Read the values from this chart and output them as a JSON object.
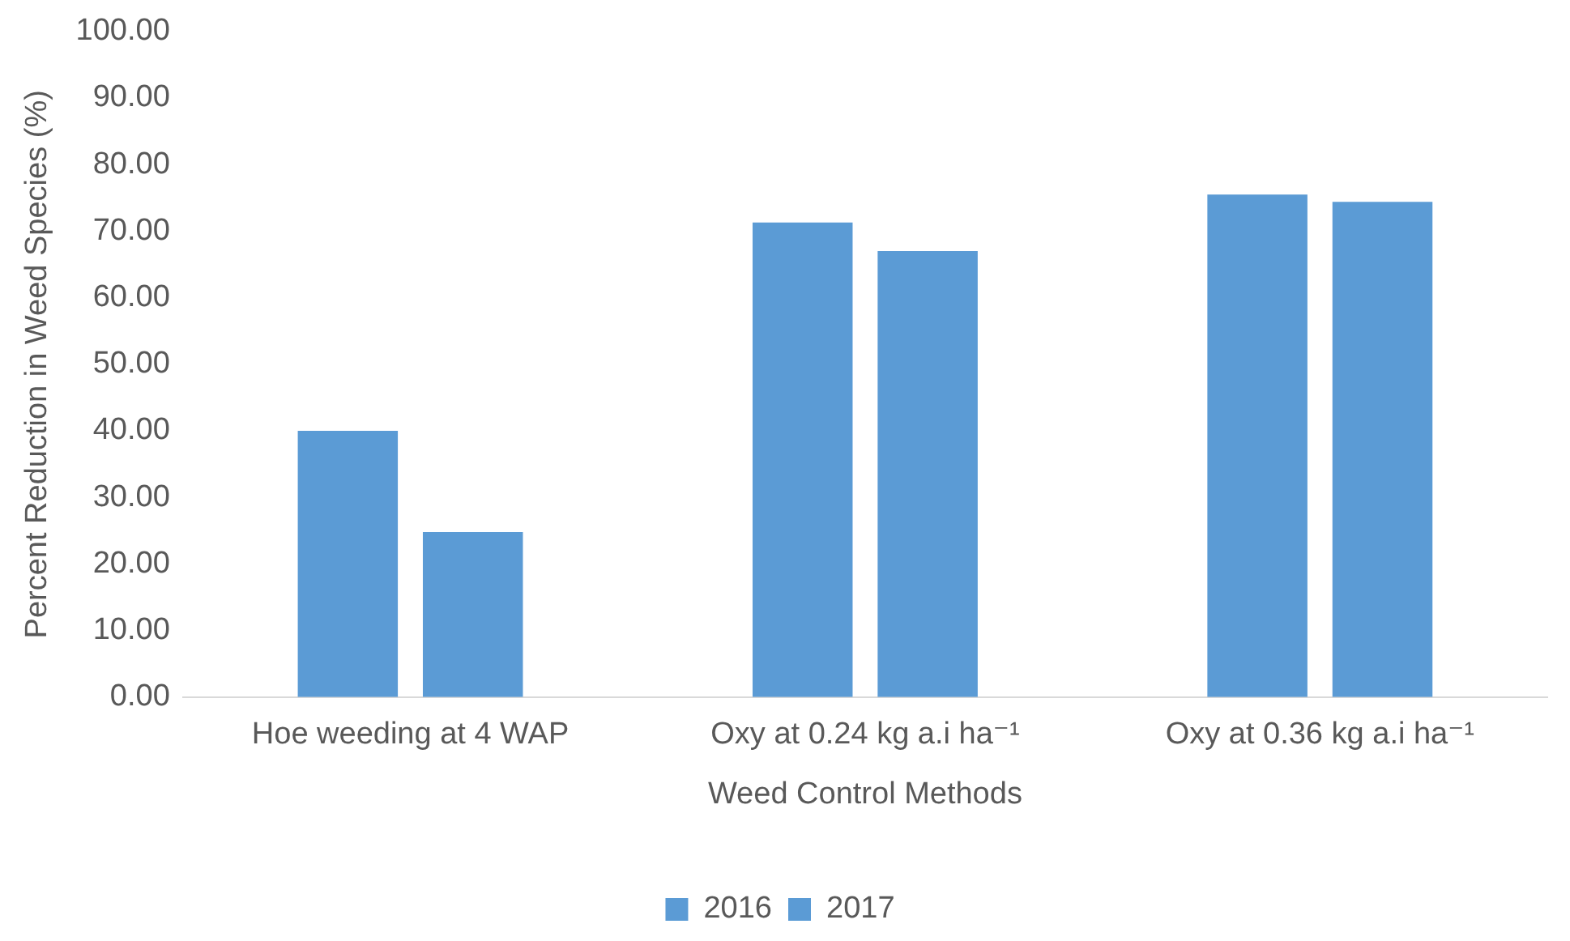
{
  "chart_data": {
    "type": "bar",
    "xlabel": "Weed Control Methods",
    "ylabel": "Percent Reduction in Weed Species (%)",
    "categories": [
      "Hoe weeding at 4 WAP",
      "Oxy at 0.24 kg a.i ha⁻¹",
      "Oxy at 0.36 kg a.i ha⁻¹"
    ],
    "series": [
      {
        "name": "2016",
        "color": "#5b9bd5",
        "values": [
          40.0,
          71.3,
          75.5
        ]
      },
      {
        "name": "2017",
        "color": "#5b9bd5",
        "values": [
          24.8,
          67.0,
          74.4
        ]
      }
    ],
    "ylim": [
      0,
      100
    ],
    "yticks": [
      {
        "value": 0,
        "label": "0.00"
      },
      {
        "value": 10,
        "label": "10.00"
      },
      {
        "value": 20,
        "label": "20.00"
      },
      {
        "value": 30,
        "label": "30.00"
      },
      {
        "value": 40,
        "label": "40.00"
      },
      {
        "value": 50,
        "label": "50.00"
      },
      {
        "value": 60,
        "label": "60.00"
      },
      {
        "value": 70,
        "label": "70.00"
      },
      {
        "value": 80,
        "label": "80.00"
      },
      {
        "value": 90,
        "label": "90.00"
      },
      {
        "value": 100,
        "label": "100.00"
      }
    ],
    "grid": false,
    "legend": "bottom"
  }
}
